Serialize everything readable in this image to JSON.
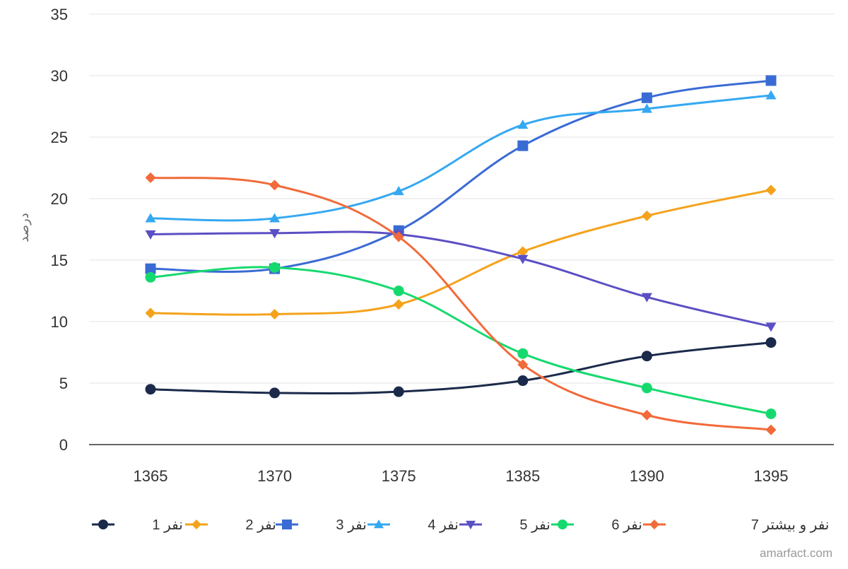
{
  "chart_data": {
    "type": "line",
    "title": "",
    "xlabel": "",
    "ylabel": "درصد",
    "x": [
      "1365",
      "1370",
      "1375",
      "1385",
      "1390",
      "1395"
    ],
    "ylim": [
      0,
      35
    ],
    "yticks": [
      0,
      5,
      10,
      15,
      20,
      25,
      30,
      35
    ],
    "grid": true,
    "legend_position": "bottom",
    "series": [
      {
        "name": "نفر 1",
        "color": "#1b2a4a",
        "marker": "circle",
        "values": [
          4.5,
          4.2,
          4.3,
          5.2,
          7.2,
          8.3
        ]
      },
      {
        "name": "نفر 2",
        "color": "#f5a21b",
        "marker": "diamond",
        "values": [
          10.7,
          10.6,
          11.4,
          15.7,
          18.6,
          20.7
        ]
      },
      {
        "name": "نفر 3",
        "color": "#3a6bd4",
        "marker": "square",
        "values": [
          14.3,
          14.3,
          17.4,
          24.3,
          28.2,
          29.6
        ]
      },
      {
        "name": "نفر 4",
        "color": "#35a8f2",
        "marker": "triangle-up",
        "values": [
          18.4,
          18.4,
          20.6,
          26.0,
          27.3,
          28.4
        ]
      },
      {
        "name": "نفر 5",
        "color": "#5b4fc4",
        "marker": "triangle-down",
        "values": [
          17.1,
          17.2,
          17.1,
          15.1,
          12.0,
          9.6
        ]
      },
      {
        "name": "نفر 6",
        "color": "#16d96e",
        "marker": "circle",
        "values": [
          13.6,
          14.4,
          12.5,
          7.4,
          4.6,
          2.5
        ]
      },
      {
        "name": "نفر و بیشتر 7",
        "color": "#f26a3a",
        "marker": "diamond",
        "values": [
          21.7,
          21.1,
          16.9,
          6.5,
          2.4,
          1.2
        ]
      }
    ]
  },
  "credit": "amarfact.com"
}
